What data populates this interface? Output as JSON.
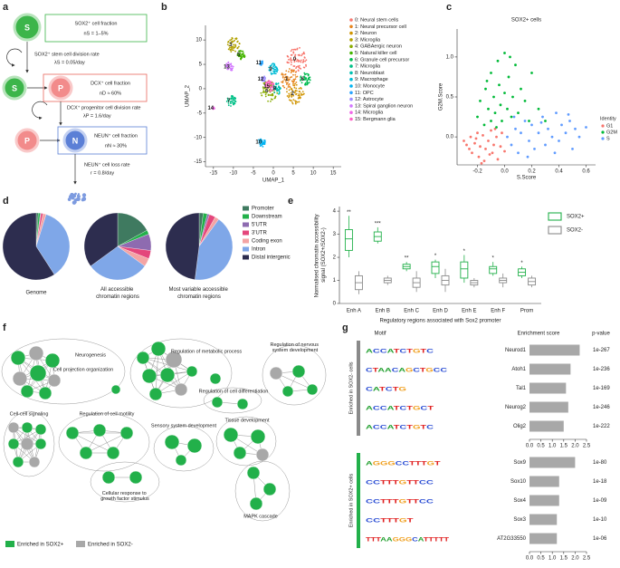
{
  "panel_labels": [
    "a",
    "b",
    "c",
    "d",
    "e",
    "f",
    "g"
  ],
  "diagram_a": {
    "nodes": [
      "S",
      "S",
      "P",
      "P",
      "N"
    ],
    "boxes": [
      {
        "title": "SOX2⁺ cell fraction",
        "value": "nS = 1–5%"
      },
      {
        "title": "DCX⁺ cell fraction",
        "value": "nD ≈ 60%"
      },
      {
        "title": "NEUN⁺ cell fraction",
        "value": "nN ≈ 30%"
      }
    ],
    "rates": [
      {
        "title": "SOX2⁺ stem cell division rate",
        "value": "λS = 0.05/day"
      },
      {
        "title": "DCX⁺ progenitor cell division rate",
        "value": "λP = 1.6/day"
      },
      {
        "title": "NEUN⁺ cell loss rate",
        "value": "r = 0.8/day"
      }
    ]
  },
  "chart_data": [
    {
      "type": "cluster",
      "xlabel": "UMAP_1",
      "ylabel": "UMAP_2",
      "categories": [
        "0: Neural stem cells",
        "1: Neural precursor cell",
        "2: Neuron",
        "3: Microglia",
        "4: GABAergic neuron",
        "5: Natural killer cell",
        "6: Granule cell precursor",
        "7: Microglia",
        "8: Neuroblast",
        "9: Macrophage",
        "10: Monocyte",
        "11: OPC",
        "12: Astrocyte",
        "13: Spiral ganglion neuron",
        "14: Microglia",
        "15: Bergmann glia"
      ],
      "point_labels": [
        "0",
        "1",
        "2",
        "3",
        "4",
        "5",
        "6",
        "7",
        "8",
        "9",
        "10",
        "11",
        "12",
        "13",
        "14",
        "15"
      ],
      "x": [
        6,
        4,
        5.5,
        -10,
        -1,
        -8,
        8,
        -10.5,
        1,
        0,
        -3,
        -3,
        -2.5,
        -11,
        -15,
        -1
      ],
      "values": [
        6,
        2,
        -1,
        9,
        -0.5,
        7,
        2,
        -2.5,
        0,
        4,
        -11,
        5.3,
        2,
        4.5,
        -4,
        0.5
      ],
      "colors": [
        "#f8766d",
        "#e7851e",
        "#d09400",
        "#b2a100",
        "#89ac00",
        "#45b500",
        "#00bc51",
        "#00c087",
        "#00c0b2",
        "#00bcd6",
        "#00b3f2",
        "#29a3ff",
        "#9c8dff",
        "#d277ff",
        "#f166e8",
        "#ff61c7"
      ],
      "xlim": [
        -17,
        17
      ],
      "ylim": [
        -16,
        13
      ],
      "xticks": [
        -15,
        -10,
        -5,
        0,
        5,
        10,
        15
      ],
      "yticks": [
        -15,
        -10,
        -5,
        0,
        5,
        10
      ]
    },
    {
      "type": "scatter",
      "title": "SOX2+ cells",
      "xlabel": "S.Score",
      "ylabel": "G2M.Score",
      "legend_title": "Identity",
      "series": [
        {
          "name": "G1",
          "color": "#f8766d",
          "x": [
            -0.3,
            -0.28,
            -0.25,
            -0.24,
            -0.22,
            -0.2,
            -0.19,
            -0.18,
            -0.16,
            -0.15,
            -0.14,
            -0.12,
            -0.1,
            -0.09,
            -0.08,
            -0.06,
            -0.05,
            -0.03,
            -0.02,
            0.0,
            -0.26,
            -0.21,
            -0.17,
            -0.11,
            -0.07
          ],
          "values": [
            -0.05,
            -0.1,
            0.0,
            -0.2,
            -0.08,
            0.05,
            -0.25,
            -0.12,
            0.02,
            -0.3,
            -0.15,
            -0.05,
            0.08,
            -0.2,
            -0.1,
            0.0,
            -0.28,
            -0.12,
            0.05,
            -0.18,
            -0.15,
            -0.02,
            -0.33,
            -0.22,
            0.1
          ]
        },
        {
          "name": "G2M",
          "color": "#00ba38",
          "x": [
            -0.2,
            -0.18,
            -0.15,
            -0.14,
            -0.12,
            -0.1,
            -0.1,
            -0.08,
            -0.07,
            -0.05,
            -0.04,
            -0.03,
            -0.02,
            0.0,
            0.0,
            0.02,
            0.03,
            0.05,
            0.06,
            0.08,
            0.1,
            0.12,
            0.15,
            0.18,
            0.2,
            0.25,
            0.3,
            -0.13,
            -0.06,
            0.04
          ],
          "values": [
            0.25,
            0.45,
            0.15,
            0.6,
            0.35,
            0.2,
            0.8,
            0.5,
            0.3,
            0.95,
            0.65,
            0.4,
            0.2,
            1.05,
            0.55,
            0.35,
            0.75,
            0.25,
            0.5,
            0.9,
            0.3,
            0.6,
            0.45,
            0.2,
            0.8,
            0.35,
            0.2,
            0.7,
            0.12,
            1.0
          ]
        },
        {
          "name": "S",
          "color": "#619cff",
          "x": [
            0.02,
            0.05,
            0.08,
            0.1,
            0.12,
            0.15,
            0.18,
            0.2,
            0.22,
            0.25,
            0.28,
            0.3,
            0.32,
            0.35,
            0.38,
            0.4,
            0.42,
            0.45,
            0.48,
            0.5,
            0.52,
            0.55,
            0.6,
            0.07,
            0.17,
            0.27,
            0.37,
            0.47
          ],
          "values": [
            0.0,
            -0.1,
            0.1,
            -0.2,
            0.05,
            0.2,
            -0.05,
            0.15,
            -0.15,
            0.05,
            0.25,
            -0.1,
            0.1,
            0.0,
            0.3,
            -0.05,
            0.15,
            0.05,
            0.2,
            -0.15,
            0.1,
            0.0,
            0.12,
            0.25,
            -0.25,
            0.18,
            -0.2,
            0.28
          ]
        }
      ],
      "xlim": [
        -0.35,
        0.67
      ],
      "ylim": [
        -0.35,
        1.35
      ],
      "xticks": [
        -0.2,
        {
          "value": 0,
          "label": "0.0"
        },
        0.2,
        0.4,
        0.6
      ],
      "yticks": [
        {
          "value": 0,
          "label": "0.0"
        },
        0.5,
        {
          "value": 1,
          "label": "1.0"
        }
      ]
    },
    {
      "type": "pie",
      "categories": [
        "Promoter",
        "Downstream",
        "5'UTR",
        "3'UTR",
        "Coding exon",
        "Intron",
        "Distal intergenic"
      ],
      "colors": [
        "#3f7a60",
        "#22b04a",
        "#8e6bb0",
        "#e4467b",
        "#f4a4a4",
        "#7fa7e8",
        "#2d2d4f"
      ],
      "series": [
        {
          "name": "Genome",
          "values": [
            1,
            1,
            0.3,
            1,
            1.5,
            36,
            59
          ]
        },
        {
          "name": "All accessible chromatin regions",
          "values": [
            17,
            2,
            8,
            4,
            4,
            30,
            35
          ]
        },
        {
          "name": "Most variable accessible chromatin regions",
          "values": [
            2,
            2,
            1,
            3,
            2,
            42,
            48
          ]
        }
      ]
    },
    {
      "type": "box",
      "ylabel": "Normalised chromatin accessibility signal (SOX2+/SOX2-)",
      "xlabel": "Regulatory regions associated with Sox2 promoter",
      "categories": [
        "Enh A",
        "Enh B",
        "Enh C",
        "Enh D",
        "Enh E",
        "Enh F",
        "Prom"
      ],
      "significance": [
        "**",
        "***",
        "**",
        "*",
        "*",
        "*",
        "*"
      ],
      "series": [
        {
          "name": "SOX2+",
          "color": "#22b04a",
          "min": [
            2.0,
            2.6,
            1.4,
            1.1,
            0.9,
            1.2,
            1.1
          ],
          "q1": [
            2.3,
            2.7,
            1.5,
            1.3,
            1.1,
            1.3,
            1.2
          ],
          "median": [
            2.8,
            2.9,
            1.6,
            1.6,
            1.5,
            1.5,
            1.35
          ],
          "q3": [
            3.2,
            3.1,
            1.7,
            1.8,
            1.8,
            1.6,
            1.5
          ],
          "max": [
            3.8,
            3.3,
            1.8,
            1.9,
            2.1,
            1.8,
            1.6
          ]
        },
        {
          "name": "SOX2-",
          "color": "#8a8a8a",
          "min": [
            0.4,
            0.8,
            0.5,
            0.5,
            0.7,
            0.7,
            0.7
          ],
          "q1": [
            0.6,
            0.9,
            0.7,
            0.8,
            0.8,
            0.9,
            0.8
          ],
          "median": [
            0.9,
            1.0,
            0.9,
            1.0,
            0.9,
            1.0,
            0.95
          ],
          "q3": [
            1.2,
            1.1,
            1.1,
            1.2,
            1.0,
            1.1,
            1.1
          ],
          "max": [
            1.4,
            1.2,
            1.4,
            1.5,
            1.1,
            1.3,
            1.2
          ]
        }
      ],
      "ylim": [
        0,
        4.2
      ],
      "yticks": [
        0,
        1,
        2,
        3,
        4
      ]
    },
    {
      "type": "bar",
      "group_label": "Enriched in SOX2- cells",
      "group_color": "#8a8a8a",
      "color": "#a8a8a8",
      "categories": [
        "Neurod1",
        "Atoh1",
        "Tal1",
        "Neurog2",
        "Olig2"
      ],
      "values": [
        2.2,
        1.8,
        1.6,
        1.7,
        1.5
      ],
      "p_values": [
        "1e-267",
        "1e-236",
        "1e-169",
        "1e-246",
        "1e-222"
      ],
      "motifs": [
        "ACCATCTGTC",
        "CTAACAGCTGCC",
        "CATCTG",
        "ACCATCTGCT",
        "ACCATCTGTC"
      ],
      "xlim": [
        0,
        2.5
      ],
      "xticks": [
        {
          "value": 0,
          "label": "0.0"
        },
        0.5,
        {
          "value": 1,
          "label": "1.0"
        },
        1.5,
        {
          "value": 2,
          "label": "2.0"
        },
        2.5
      ]
    },
    {
      "type": "bar",
      "group_label": "Enriched in SOX2+ cells",
      "group_color": "#22b04a",
      "color": "#a8a8a8",
      "categories": [
        "Sox9",
        "Sox10",
        "Sox4",
        "Sox3",
        "AT2G33550"
      ],
      "values": [
        2.0,
        1.3,
        1.3,
        1.2,
        1.2
      ],
      "p_values": [
        "1e-80",
        "1e-18",
        "1e-09",
        "1e-10",
        "1e-06"
      ],
      "motifs": [
        "AGGGCCTTTGT",
        "CCTTTGTTCC",
        "CCTTTGTTCC",
        "CCTTTGT",
        "TTTAAGGGCATTTTT"
      ],
      "xlim": [
        0,
        2.5
      ],
      "xticks": [
        {
          "value": 0,
          "label": "0.0"
        },
        0.5,
        {
          "value": 1,
          "label": "1.0"
        },
        1.5,
        {
          "value": 2,
          "label": "2.0"
        },
        2.5
      ]
    }
  ],
  "network_f": {
    "labels": [
      "Neurogenesis",
      "Cell projection organization",
      "Regulation of metabolic process",
      "Regulation of nervous system development",
      "Regulation of cell differentiation",
      "Cell-cell signaling",
      "Regulation of cell motility",
      "Sensory system development",
      "Tissue development",
      "Cellular response to growth factor stimulus",
      "MAPK cascade"
    ],
    "legend": [
      "Enriched in SOX2+",
      "Enriched in SOX2-"
    ]
  },
  "g_headers": [
    "Motif",
    "Enrichment score",
    "p-value"
  ]
}
